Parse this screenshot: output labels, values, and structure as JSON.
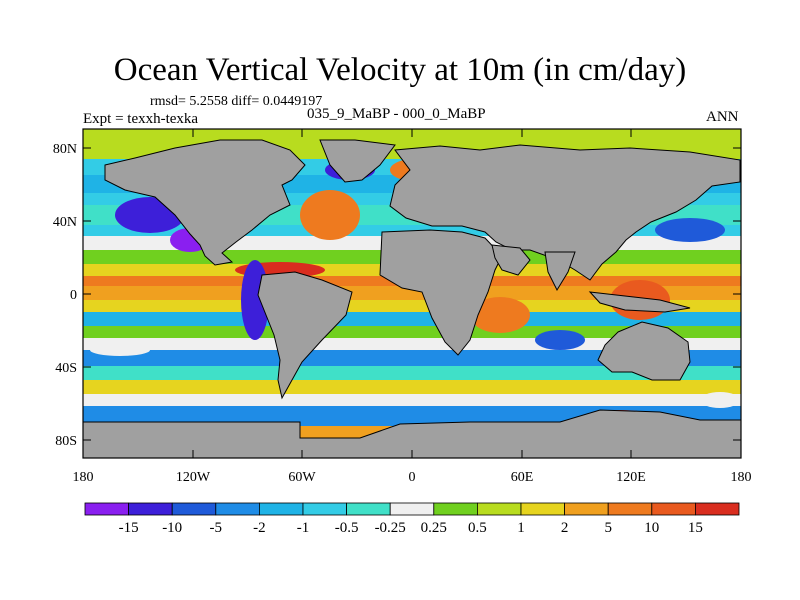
{
  "header": {
    "title": "Ocean Vertical Velocity at 10m (in cm/day)",
    "stats": "rmsd= 5.2558 diff= 0.0449197",
    "comparison": "035_9_MaBP - 000_0_MaBP",
    "experiment": "Expt = texxh-texka",
    "season": "ANN"
  },
  "axes": {
    "lat_labels": [
      "80N",
      "40N",
      "0",
      "40S",
      "80S"
    ],
    "lon_labels": [
      "180",
      "120W",
      "60W",
      "0",
      "60E",
      "120E",
      "180"
    ]
  },
  "colorbar": {
    "labels": [
      "-15",
      "-10",
      "-5",
      "-2",
      "-1",
      "-0.5",
      "-0.25",
      "0.25",
      "0.5",
      "1",
      "2",
      "5",
      "10",
      "15"
    ],
    "colors": [
      "#8a1ff0",
      "#3d1fd9",
      "#1f5ad9",
      "#1f8ce6",
      "#1fb3e6",
      "#33cce6",
      "#40e0c8",
      "#f0f0f0",
      "#70d01f",
      "#b8dc1f",
      "#e6d41f",
      "#f0a01f",
      "#ee7a1f",
      "#e95a1f",
      "#d92d1f"
    ]
  },
  "chart_data": {
    "type": "heatmap",
    "title": "Ocean Vertical Velocity at 10m (in cm/day)",
    "units": "cm/day",
    "x_range": [
      -180,
      180
    ],
    "y_range": [
      -90,
      90
    ],
    "contour_levels": [
      -15,
      -10,
      -5,
      -2,
      -1,
      -0.5,
      -0.25,
      0.25,
      0.5,
      1,
      2,
      5,
      10,
      15
    ],
    "land_color": "#a0a0a0"
  }
}
